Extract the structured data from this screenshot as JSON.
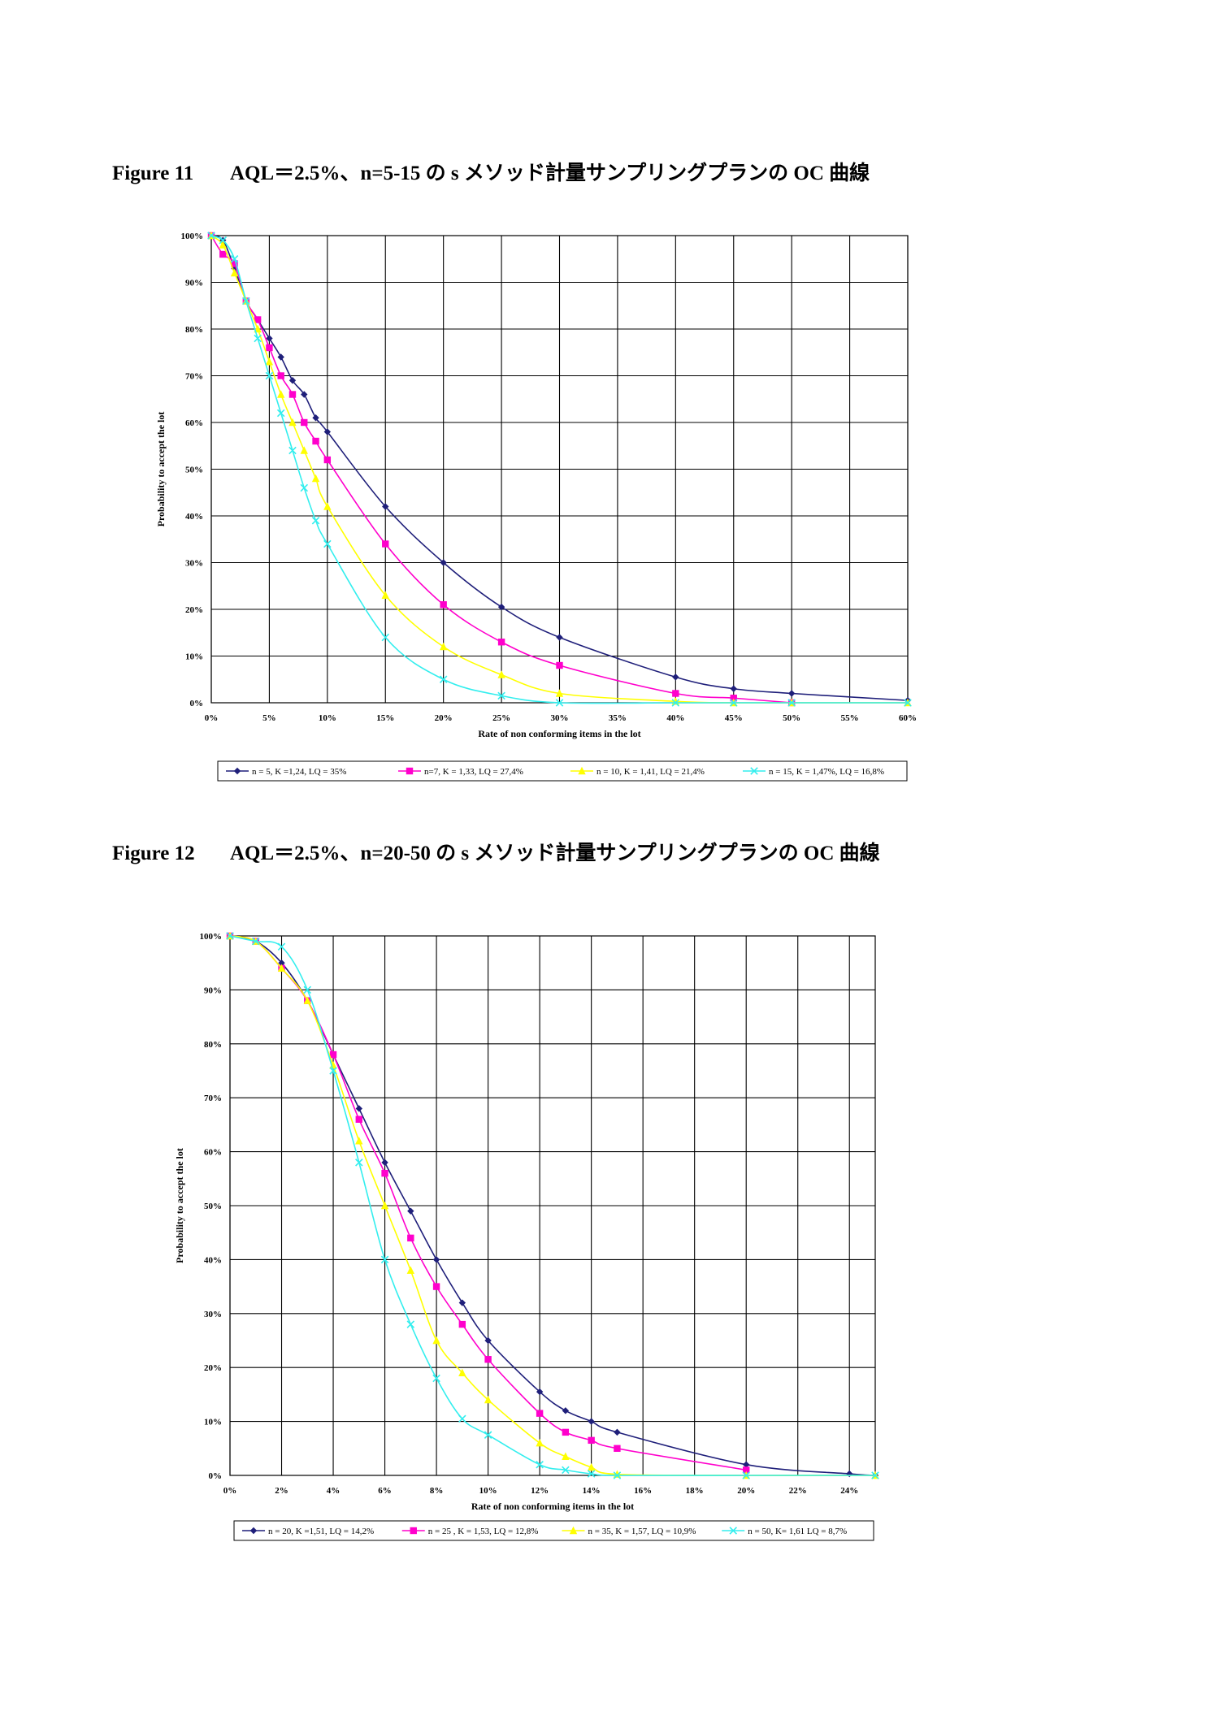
{
  "figures": [
    {
      "number_label": "Figure 11",
      "title": "AQL＝2.5%、n=5-15 の s メソッド計量サンプリングプランの OC 曲線"
    },
    {
      "number_label": "Figure 12",
      "title": "AQL＝2.5%、n=20-50 の s メソッド計量サンプリングプランの OC 曲線"
    }
  ],
  "colors": {
    "navy": "#1f1f7a",
    "magenta": "#ff00cc",
    "yellow": "#ffff00",
    "cyan": "#33eeee",
    "grid": "#000000"
  },
  "chart_data": [
    {
      "type": "line",
      "title": "",
      "xlabel": "Rate of non conforming items in the lot",
      "ylabel": "Probability to accept the lot",
      "xlim": [
        0,
        60
      ],
      "ylim": [
        0,
        100
      ],
      "x_ticks": [
        0,
        5,
        10,
        15,
        20,
        25,
        30,
        35,
        40,
        45,
        50,
        55,
        60
      ],
      "x_tick_labels": [
        "0%",
        "5%",
        "10%",
        "15%",
        "20%",
        "25%",
        "30%",
        "35%",
        "40%",
        "45%",
        "50%",
        "55%",
        "60%"
      ],
      "y_ticks": [
        0,
        10,
        20,
        30,
        40,
        50,
        60,
        70,
        80,
        90,
        100
      ],
      "y_tick_labels": [
        "0%",
        "10%",
        "20%",
        "30%",
        "40%",
        "50%",
        "60%",
        "70%",
        "80%",
        "90%",
        "100%"
      ],
      "grid": true,
      "legend_position": "bottom",
      "series": [
        {
          "name": "n = 5, K =1,24, LQ = 35%",
          "color": "#1f1f7a",
          "marker": "diamond",
          "x": [
            0,
            1,
            2,
            3,
            4,
            5,
            6,
            7,
            8,
            9,
            10,
            15,
            20,
            25,
            30,
            40,
            45,
            50,
            60
          ],
          "y": [
            100,
            99,
            93,
            86,
            82,
            78,
            74,
            69,
            66,
            61,
            58,
            42,
            30,
            20.5,
            14,
            5.5,
            3,
            2,
            0.5
          ]
        },
        {
          "name": "n=7, K = 1,33, LQ = 27,4%",
          "color": "#ff00cc",
          "marker": "square",
          "x": [
            0,
            1,
            2,
            3,
            4,
            5,
            6,
            7,
            8,
            9,
            10,
            15,
            20,
            25,
            30,
            40,
            45,
            50
          ],
          "y": [
            100,
            96,
            94,
            86,
            82,
            76,
            70,
            66,
            60,
            56,
            52,
            34,
            21,
            13,
            8,
            2,
            1,
            0
          ]
        },
        {
          "name": "n = 10, K = 1,41, LQ = 21,4%",
          "color": "#ffff00",
          "marker": "triangle",
          "x": [
            0,
            1,
            2,
            3,
            4,
            5,
            6,
            7,
            8,
            9,
            10,
            15,
            20,
            25,
            30,
            40,
            45,
            50,
            60
          ],
          "y": [
            100,
            98,
            92,
            86,
            80,
            73,
            66,
            60,
            54,
            48,
            42,
            23,
            12,
            6,
            2,
            0.3,
            0,
            0,
            0
          ]
        },
        {
          "name": "n = 15, K = 1,47%, LQ = 16,8%",
          "color": "#33eeee",
          "marker": "x",
          "x": [
            0,
            1,
            2,
            3,
            4,
            5,
            6,
            7,
            8,
            9,
            10,
            15,
            20,
            25,
            30,
            40,
            45,
            50,
            60
          ],
          "y": [
            100,
            99,
            95,
            86,
            78,
            70,
            62,
            54,
            46,
            39,
            34,
            14,
            5,
            1.5,
            0,
            0,
            0,
            0,
            0
          ]
        }
      ]
    },
    {
      "type": "line",
      "title": "",
      "xlabel": "Rate of non conforming items in the lot",
      "ylabel": "Probability to accept the lot",
      "xlim": [
        0,
        25
      ],
      "ylim": [
        0,
        100
      ],
      "x_ticks": [
        0,
        2,
        4,
        6,
        8,
        10,
        12,
        14,
        16,
        18,
        20,
        22,
        24
      ],
      "x_tick_labels": [
        "0%",
        "2%",
        "4%",
        "6%",
        "8%",
        "10%",
        "12%",
        "14%",
        "16%",
        "18%",
        "20%",
        "22%",
        "24%"
      ],
      "y_ticks": [
        0,
        10,
        20,
        30,
        40,
        50,
        60,
        70,
        80,
        90,
        100
      ],
      "y_tick_labels": [
        "0%",
        "10%",
        "20%",
        "30%",
        "40%",
        "50%",
        "60%",
        "70%",
        "80%",
        "90%",
        "100%"
      ],
      "grid": true,
      "legend_position": "bottom",
      "series": [
        {
          "name": "n = 20, K =1,51, LQ = 14,2%",
          "color": "#1f1f7a",
          "marker": "diamond",
          "x": [
            0,
            1,
            2,
            3,
            4,
            5,
            6,
            7,
            8,
            9,
            10,
            12,
            13,
            14,
            15,
            20,
            24,
            25
          ],
          "y": [
            100,
            99,
            95,
            88,
            78,
            68,
            58,
            49,
            40,
            32,
            25,
            15.5,
            12,
            10,
            8,
            2,
            0.3,
            0
          ]
        },
        {
          "name": "n = 25 , K = 1,53, LQ = 12,8%",
          "color": "#ff00cc",
          "marker": "square",
          "x": [
            0,
            1,
            2,
            3,
            4,
            5,
            6,
            7,
            8,
            9,
            10,
            12,
            13,
            14,
            15,
            20
          ],
          "y": [
            100,
            99,
            94,
            88,
            78,
            66,
            56,
            44,
            35,
            28,
            21.5,
            11.5,
            8,
            6.5,
            5,
            1
          ]
        },
        {
          "name": "n = 35, K = 1,57, LQ = 10,9%",
          "color": "#ffff00",
          "marker": "triangle",
          "x": [
            0,
            1,
            2,
            3,
            4,
            5,
            6,
            7,
            8,
            9,
            10,
            12,
            13,
            14,
            15,
            20,
            25
          ],
          "y": [
            100,
            99,
            94,
            88,
            76,
            62,
            50,
            38,
            25,
            19,
            14,
            6,
            3.5,
            1.5,
            0.2,
            0,
            0
          ]
        },
        {
          "name": "n = 50, K= 1,61 LQ = 8,7%",
          "color": "#33eeee",
          "marker": "x",
          "x": [
            0,
            1,
            2,
            3,
            4,
            5,
            6,
            7,
            8,
            9,
            10,
            12,
            13,
            14,
            15,
            20,
            25
          ],
          "y": [
            100,
            99,
            98,
            90,
            75,
            58,
            40,
            28,
            18,
            10.5,
            7.5,
            2,
            1,
            0.3,
            0,
            0,
            0
          ]
        }
      ]
    }
  ]
}
